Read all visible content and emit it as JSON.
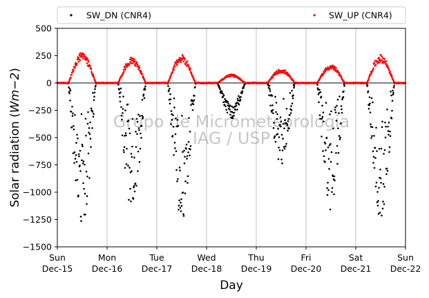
{
  "chart_data": {
    "type": "scatter",
    "xlabel": "Day",
    "ylabel": "Solar radiation (Wm−2)",
    "ylabel_prefix": "Solar radiation (",
    "ylabel_unit": "Wm−2",
    "ylabel_suffix": ")",
    "ylim": [
      -1500,
      500
    ],
    "yticks": [
      500,
      250,
      0,
      -250,
      -500,
      -750,
      -1000,
      -1250,
      -1500
    ],
    "ytick_labels": [
      "500",
      "250",
      "0",
      "−250",
      "−500",
      "−750",
      "−1000",
      "−1250",
      "−1500"
    ],
    "xlim": [
      "2024-12-15",
      "2024-12-22"
    ],
    "x_ticks": [
      {
        "day": "Sun",
        "date": "Dec-15"
      },
      {
        "day": "Mon",
        "date": "Dec-16"
      },
      {
        "day": "Tue",
        "date": "Dec-17"
      },
      {
        "day": "Wed",
        "date": "Dec-18"
      },
      {
        "day": "Thu",
        "date": "Dec-19"
      },
      {
        "day": "Fri",
        "date": "Dec-20"
      },
      {
        "day": "Sat",
        "date": "Dec-21"
      },
      {
        "day": "Sun",
        "date": "Dec-22"
      }
    ],
    "grid": "vertical",
    "zero_line": true,
    "legend_position": "top, outside plot",
    "watermark": [
      "Grupo de Micrometeorologia",
      "IAG / USP"
    ],
    "series": [
      {
        "name": "SW_DN (CNR4)",
        "color": "#000000",
        "marker": "dot",
        "daily_minimum_approx": [
          {
            "date": "Dec-15",
            "min": -1350
          },
          {
            "date": "Dec-16",
            "min": -1180
          },
          {
            "date": "Dec-17",
            "min": -1260
          },
          {
            "date": "Dec-18",
            "min": -330
          },
          {
            "date": "Dec-19",
            "min": -750
          },
          {
            "date": "Dec-20",
            "min": -1170
          },
          {
            "date": "Dec-21",
            "min": -1240
          }
        ]
      },
      {
        "name": "SW_UP (CNR4)",
        "color": "#ff0000",
        "marker": "dot",
        "daily_maximum_approx": [
          {
            "date": "Dec-15",
            "max": 280
          },
          {
            "date": "Dec-16",
            "max": 240
          },
          {
            "date": "Dec-17",
            "max": 260
          },
          {
            "date": "Dec-18",
            "max": 80
          },
          {
            "date": "Dec-19",
            "max": 130
          },
          {
            "date": "Dec-20",
            "max": 170
          },
          {
            "date": "Dec-21",
            "max": 260
          }
        ]
      }
    ]
  }
}
